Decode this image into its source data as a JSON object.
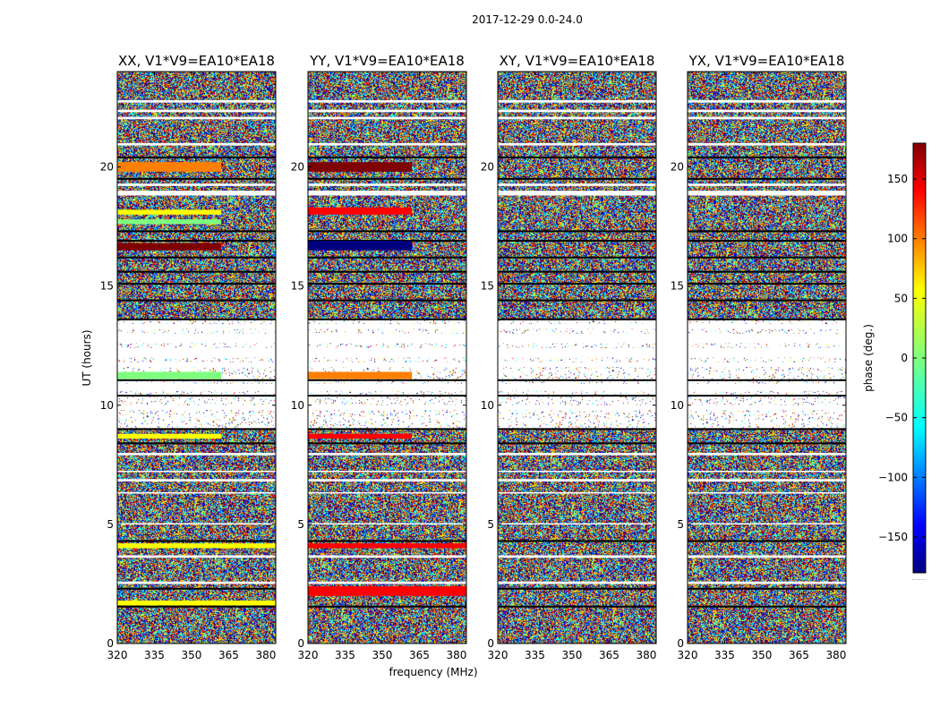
{
  "chart_data": {
    "type": "heatmap",
    "suptitle": "2017-12-29 0.0-24.0",
    "xlabel": "frequency (MHz)",
    "ylabel": "UT (hours)",
    "colorbar_label": "phase (deg.)",
    "xlim": [
      320,
      384
    ],
    "ylim": [
      0,
      24
    ],
    "xticks": [
      "320",
      "335",
      "350",
      "365",
      "380"
    ],
    "yticks": [
      "0",
      "5",
      "10",
      "15",
      "20"
    ],
    "colorbar_range": [
      -180,
      180
    ],
    "colorbar_ticks": [
      "−150",
      "−100",
      "−50",
      "0",
      "50",
      "100",
      "150"
    ],
    "colorbar_tick_values": [
      -150,
      -100,
      -50,
      0,
      50,
      100,
      150
    ],
    "colormap": [
      "#00007f",
      "#0000ff",
      "#007fff",
      "#00ffff",
      "#7fff7f",
      "#ffff00",
      "#ff7f00",
      "#ff0000",
      "#7f0000"
    ],
    "colorbar_footer": "......",
    "panels": [
      {
        "title": "XX, V1*V9=EA10*EA18",
        "coherent_bands": [
          {
            "ut": [
              19.8,
              20.2
            ],
            "freq_end": 362,
            "phase": 60
          },
          {
            "ut": [
              18.0,
              18.2
            ],
            "freq_end": 362,
            "phase": 30
          },
          {
            "ut": [
              17.6,
              17.8
            ],
            "freq_end": 362,
            "phase": 10
          },
          {
            "ut": [
              16.5,
              16.8
            ],
            "freq_end": 362,
            "phase": 165
          },
          {
            "ut": [
              11.1,
              11.4
            ],
            "freq_end": 362,
            "phase": 10
          },
          {
            "ut": [
              8.6,
              8.8
            ],
            "freq_end": 362,
            "phase": 55
          },
          {
            "ut": [
              4.0,
              4.2
            ],
            "freq_end": 384,
            "phase": 50
          },
          {
            "ut": [
              1.6,
              1.8
            ],
            "freq_end": 384,
            "phase": 45
          }
        ]
      },
      {
        "title": "YY, V1*V9=EA10*EA18",
        "coherent_bands": [
          {
            "ut": [
              19.8,
              20.2
            ],
            "freq_end": 362,
            "phase": 165
          },
          {
            "ut": [
              18.0,
              18.3
            ],
            "freq_end": 362,
            "phase": 100
          },
          {
            "ut": [
              16.5,
              16.9
            ],
            "freq_end": 362,
            "phase": -150
          },
          {
            "ut": [
              11.1,
              11.4
            ],
            "freq_end": 362,
            "phase": 95
          },
          {
            "ut": [
              8.6,
              8.8
            ],
            "freq_end": 362,
            "phase": 120
          },
          {
            "ut": [
              4.0,
              4.2
            ],
            "freq_end": 384,
            "phase": 135
          },
          {
            "ut": [
              2.0,
              2.4
            ],
            "freq_end": 384,
            "phase": 130
          }
        ]
      },
      {
        "title": "XY, V1*V9=EA10*EA18",
        "coherent_bands": []
      },
      {
        "title": "YX, V1*V9=EA10*EA18",
        "coherent_bands": []
      }
    ]
  }
}
